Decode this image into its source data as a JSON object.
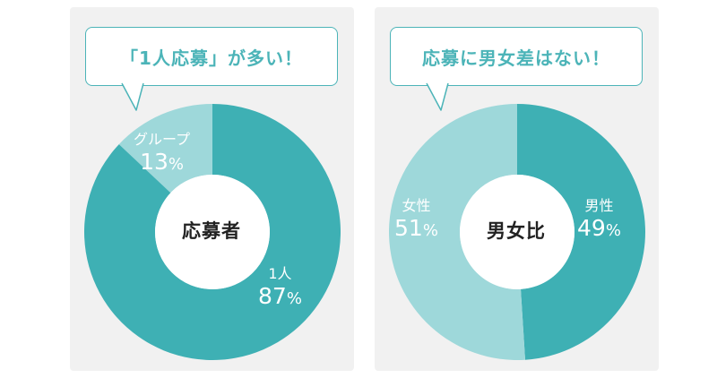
{
  "colors": {
    "dark": "#3eb0b4",
    "light": "#9ed8da",
    "accent": "#4cb4b8",
    "panel": "#f1f1f1"
  },
  "chart_data": [
    {
      "type": "pie",
      "title": "「1人応募」が多い！",
      "center_label": "応募者",
      "slices": [
        {
          "label": "グループ",
          "value": 13
        },
        {
          "label": "1人",
          "value": 87
        }
      ]
    },
    {
      "type": "pie",
      "title": "応募に男女差はない！",
      "center_label": "男女比",
      "slices": [
        {
          "label": "男性",
          "value": 49
        },
        {
          "label": "女性",
          "value": 51
        }
      ]
    }
  ]
}
